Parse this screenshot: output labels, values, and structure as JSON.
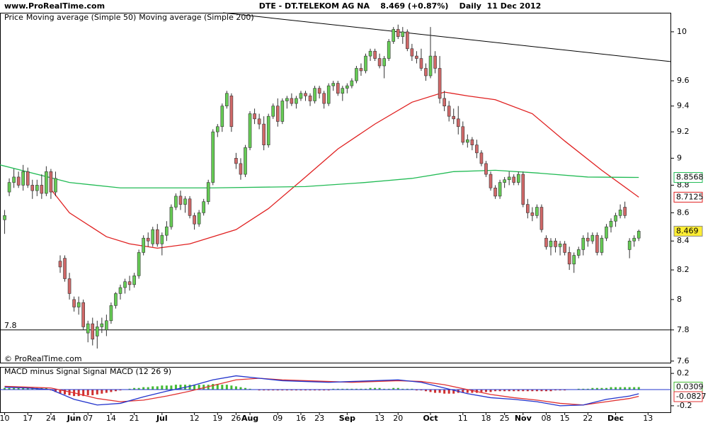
{
  "header": {
    "site": "www.ProRealTime.com",
    "title": "DTE - DT.TELEKOM AG NA    8.469 (+0.87%)    Daily  11 Dec 2012"
  },
  "chart_data": [
    {
      "type": "candlestick",
      "legend_label": "Price",
      "watermark": "© ProRealTime.com",
      "up_color": "#66cc55",
      "down_color": "#d06868",
      "log_scale": true,
      "grid": false,
      "xlim": [
        -1,
        144
      ],
      "ylim": [
        7.59,
        10.16
      ],
      "yticks": [
        7.6,
        7.8,
        8,
        8.2,
        8.4,
        8.6,
        8.8,
        9,
        9.2,
        9.4,
        9.6,
        10
      ],
      "reference_line": 7.8,
      "open": [
        8.55,
        8.75,
        8.82,
        8.86,
        8.8,
        8.9,
        8.8,
        8.76,
        8.8,
        8.74,
        8.9,
        8.75,
        8.26,
        8.28,
        8.14,
        8.0,
        7.95,
        7.98,
        7.78,
        7.84,
        7.76,
        7.82,
        7.8,
        7.86,
        7.96,
        8.04,
        8.08,
        8.12,
        8.1,
        8.16,
        8.32,
        8.42,
        8.38,
        8.48,
        8.38,
        8.44,
        8.5,
        8.64,
        8.72,
        8.66,
        8.7,
        8.58,
        8.52,
        8.6,
        8.68,
        8.82,
        9.2,
        9.24,
        9.4,
        9.48,
        9.0,
        8.96,
        8.88,
        9.08,
        9.34,
        9.3,
        9.26,
        9.1,
        9.32,
        9.4,
        9.28,
        9.44,
        9.46,
        9.42,
        9.46,
        9.5,
        9.48,
        9.44,
        9.54,
        9.5,
        9.42,
        9.56,
        9.58,
        9.5,
        9.54,
        9.56,
        9.6,
        9.7,
        9.68,
        9.8,
        9.84,
        9.78,
        9.72,
        9.78,
        9.92,
        10.02,
        9.96,
        10.0,
        9.86,
        9.8,
        9.78,
        9.7,
        9.64,
        9.8,
        9.7,
        9.46,
        9.4,
        9.32,
        9.3,
        9.24,
        9.12,
        9.14,
        9.1,
        9.04,
        8.96,
        8.88,
        8.78,
        8.72,
        8.82,
        8.84,
        8.86,
        8.82,
        8.88,
        8.66,
        8.6,
        8.58,
        8.64,
        8.42,
        8.36,
        8.4,
        8.36,
        8.38,
        8.32,
        8.24,
        8.3,
        8.34,
        8.42,
        8.4,
        8.44,
        8.32,
        8.42,
        8.5,
        8.54,
        8.58,
        8.64,
        8.34,
        8.4,
        8.42
      ],
      "high": [
        8.62,
        8.85,
        8.92,
        8.9,
        8.95,
        8.93,
        8.84,
        8.84,
        8.88,
        8.94,
        8.92,
        8.9,
        8.3,
        8.3,
        8.18,
        8.02,
        8.02,
        8.0,
        7.86,
        7.88,
        7.86,
        7.88,
        7.9,
        7.98,
        8.05,
        8.1,
        8.14,
        8.16,
        8.18,
        8.34,
        8.44,
        8.46,
        8.5,
        8.52,
        8.46,
        8.54,
        8.66,
        8.74,
        8.76,
        8.72,
        8.72,
        8.6,
        8.62,
        8.7,
        8.84,
        9.22,
        9.26,
        9.42,
        9.52,
        9.5,
        9.04,
        9.0,
        9.1,
        9.36,
        9.38,
        9.34,
        9.32,
        9.34,
        9.42,
        9.46,
        9.46,
        9.48,
        9.5,
        9.48,
        9.52,
        9.52,
        9.5,
        9.56,
        9.56,
        9.52,
        9.58,
        9.6,
        9.6,
        9.56,
        9.58,
        9.62,
        9.72,
        9.74,
        9.82,
        9.86,
        9.86,
        9.82,
        9.8,
        9.94,
        10.04,
        10.06,
        10.04,
        10.02,
        9.9,
        9.84,
        9.86,
        9.74,
        10.04,
        9.84,
        9.8,
        9.52,
        9.44,
        9.38,
        9.4,
        9.28,
        9.18,
        9.16,
        9.14,
        9.06,
        8.98,
        8.9,
        8.8,
        8.84,
        8.86,
        8.9,
        8.88,
        8.9,
        8.9,
        8.7,
        8.64,
        8.66,
        8.66,
        8.44,
        8.42,
        8.42,
        8.4,
        8.4,
        8.36,
        8.32,
        8.36,
        8.44,
        8.46,
        8.46,
        8.46,
        8.44,
        8.52,
        8.56,
        8.6,
        8.66,
        8.68,
        8.42,
        8.44,
        8.48
      ],
      "low": [
        8.45,
        8.72,
        8.78,
        8.78,
        8.76,
        8.78,
        8.7,
        8.72,
        8.7,
        8.72,
        8.7,
        8.72,
        8.18,
        8.12,
        8.0,
        7.92,
        7.9,
        7.8,
        7.72,
        7.7,
        7.68,
        7.78,
        7.76,
        7.84,
        7.94,
        8.0,
        8.04,
        8.06,
        8.08,
        8.14,
        8.3,
        8.36,
        8.36,
        8.36,
        8.3,
        8.4,
        8.48,
        8.62,
        8.62,
        8.6,
        8.56,
        8.48,
        8.5,
        8.58,
        8.66,
        8.8,
        9.16,
        9.2,
        9.38,
        9.2,
        8.92,
        8.84,
        8.86,
        9.06,
        9.26,
        9.22,
        9.06,
        9.08,
        9.3,
        9.24,
        9.26,
        9.38,
        9.4,
        9.38,
        9.44,
        9.44,
        9.4,
        9.42,
        9.46,
        9.38,
        9.4,
        9.52,
        9.48,
        9.44,
        9.5,
        9.54,
        9.58,
        9.64,
        9.66,
        9.76,
        9.76,
        9.7,
        9.62,
        9.76,
        9.9,
        9.94,
        9.9,
        9.84,
        9.76,
        9.74,
        9.68,
        9.6,
        9.62,
        9.66,
        9.42,
        9.36,
        9.28,
        9.26,
        9.18,
        9.1,
        9.08,
        9.06,
        9.0,
        8.94,
        8.86,
        8.76,
        8.7,
        8.7,
        8.78,
        8.8,
        8.8,
        8.8,
        8.64,
        8.56,
        8.54,
        8.56,
        8.46,
        8.34,
        8.3,
        8.32,
        8.3,
        8.3,
        8.2,
        8.18,
        8.28,
        8.3,
        8.36,
        8.38,
        8.3,
        8.3,
        8.4,
        8.46,
        8.5,
        8.56,
        8.56,
        8.28,
        8.36,
        8.4
      ],
      "close": [
        8.58,
        8.82,
        8.86,
        8.8,
        8.9,
        8.8,
        8.76,
        8.8,
        8.74,
        8.9,
        8.75,
        8.85,
        8.22,
        8.14,
        8.04,
        7.95,
        7.98,
        7.82,
        7.84,
        7.74,
        7.82,
        7.84,
        7.86,
        7.96,
        8.04,
        8.08,
        8.12,
        8.1,
        8.16,
        8.32,
        8.42,
        8.4,
        8.48,
        8.38,
        8.44,
        8.5,
        8.64,
        8.72,
        8.66,
        8.7,
        8.58,
        8.52,
        8.6,
        8.68,
        8.82,
        9.2,
        9.24,
        9.4,
        9.5,
        9.24,
        8.96,
        8.88,
        9.08,
        9.34,
        9.3,
        9.26,
        9.1,
        9.32,
        9.4,
        9.28,
        9.44,
        9.46,
        9.42,
        9.46,
        9.5,
        9.48,
        9.44,
        9.54,
        9.5,
        9.42,
        9.56,
        9.58,
        9.5,
        9.54,
        9.56,
        9.6,
        9.7,
        9.68,
        9.8,
        9.84,
        9.78,
        9.72,
        9.78,
        9.92,
        10.02,
        9.96,
        10.0,
        9.86,
        9.8,
        9.78,
        9.7,
        9.64,
        9.8,
        9.7,
        9.46,
        9.4,
        9.32,
        9.3,
        9.24,
        9.12,
        9.14,
        9.1,
        9.04,
        8.96,
        8.88,
        8.78,
        8.72,
        8.82,
        8.84,
        8.86,
        8.82,
        8.88,
        8.66,
        8.6,
        8.58,
        8.64,
        8.48,
        8.36,
        8.4,
        8.36,
        8.38,
        8.32,
        8.24,
        8.3,
        8.34,
        8.42,
        8.4,
        8.44,
        8.32,
        8.42,
        8.5,
        8.54,
        8.58,
        8.62,
        8.58,
        8.4,
        8.42,
        8.469
      ],
      "last_box_color": "#ffee33",
      "series": [
        {
          "name": "Moving average (Simple 50)",
          "color": "#e02020",
          "x": [
            10,
            14,
            22,
            27,
            33,
            40,
            50,
            57,
            65,
            72,
            80,
            88,
            95,
            100,
            106,
            114,
            121,
            129,
            137
          ],
          "values": [
            8.77,
            8.6,
            8.43,
            8.38,
            8.35,
            8.38,
            8.48,
            8.63,
            8.86,
            9.07,
            9.26,
            9.43,
            9.51,
            9.48,
            9.45,
            9.34,
            9.13,
            8.91,
            8.7125
          ]
        },
        {
          "name": "Moving average (Simple 200)",
          "color": "#22bb55",
          "x": [
            -1,
            14,
            25,
            45,
            65,
            78,
            88,
            97,
            106,
            115,
            126,
            137
          ],
          "values": [
            8.95,
            8.82,
            8.78,
            8.78,
            8.79,
            8.82,
            8.85,
            8.9,
            8.91,
            8.89,
            8.86,
            8.8568
          ]
        }
      ]
    },
    {
      "type": "macd",
      "legend_label": "MACD (12 26 9)",
      "xlim": [
        -1,
        144
      ],
      "ylim": [
        -0.28,
        0.28
      ],
      "yticks": [
        0.2,
        -0.2
      ],
      "xticks": [
        {
          "value": 0,
          "label": "10"
        },
        {
          "value": 5,
          "label": "17"
        },
        {
          "value": 10,
          "label": "24"
        },
        {
          "value": 15,
          "label": "Jun"
        },
        {
          "value": 18,
          "label": "07"
        },
        {
          "value": 23,
          "label": "14"
        },
        {
          "value": 28,
          "label": "21"
        },
        {
          "value": 34,
          "label": "Jul"
        },
        {
          "value": 41,
          "label": "12"
        },
        {
          "value": 46,
          "label": "19"
        },
        {
          "value": 50,
          "label": "26"
        },
        {
          "value": 53,
          "label": "Aug"
        },
        {
          "value": 59,
          "label": "09"
        },
        {
          "value": 64,
          "label": "16"
        },
        {
          "value": 68,
          "label": "23"
        },
        {
          "value": 74,
          "label": "Sep"
        },
        {
          "value": 81,
          "label": "13"
        },
        {
          "value": 85,
          "label": "20"
        },
        {
          "value": 92,
          "label": "Oct"
        },
        {
          "value": 99,
          "label": "11"
        },
        {
          "value": 104,
          "label": "18"
        },
        {
          "value": 108,
          "label": "25"
        },
        {
          "value": 112,
          "label": "Nov"
        },
        {
          "value": 117,
          "label": "08"
        },
        {
          "value": 121,
          "label": "15"
        },
        {
          "value": 126,
          "label": "22"
        },
        {
          "value": 132,
          "label": "Dec"
        },
        {
          "value": 139,
          "label": "13"
        }
      ],
      "histogram_name": "MACD minus Signal",
      "up_color": "#44bb33",
      "down_color": "#d03030",
      "histogram": [
        0.02,
        0.02,
        0.02,
        0.02,
        0.02,
        0.02,
        0.02,
        0.02,
        0.02,
        0.02,
        -0.01,
        -0.03,
        -0.05,
        -0.06,
        -0.07,
        -0.08,
        -0.08,
        -0.08,
        -0.07,
        -0.07,
        -0.06,
        -0.05,
        -0.04,
        -0.03,
        -0.02,
        -0.01,
        0.0,
        0.01,
        0.02,
        0.02,
        0.03,
        0.03,
        0.04,
        0.04,
        0.05,
        0.05,
        0.05,
        0.06,
        0.06,
        0.06,
        0.06,
        0.06,
        0.06,
        0.06,
        0.06,
        0.07,
        0.07,
        0.06,
        0.06,
        0.05,
        0.04,
        0.03,
        0.02,
        0.01,
        0.0,
        -0.01,
        -0.01,
        -0.01,
        -0.01,
        -0.01,
        -0.01,
        -0.01,
        -0.01,
        -0.01,
        -0.01,
        -0.01,
        -0.01,
        -0.01,
        -0.01,
        -0.01,
        -0.01,
        0.01,
        0.01,
        0.01,
        0.01,
        0.01,
        0.01,
        0.01,
        0.01,
        0.02,
        0.02,
        0.02,
        0.01,
        0.01,
        0.02,
        0.02,
        0.01,
        0.01,
        0.01,
        -0.01,
        -0.01,
        -0.02,
        -0.03,
        -0.04,
        -0.04,
        -0.05,
        -0.05,
        -0.05,
        -0.04,
        -0.04,
        -0.04,
        -0.04,
        -0.04,
        -0.03,
        -0.03,
        -0.03,
        -0.02,
        -0.02,
        -0.02,
        -0.02,
        -0.02,
        -0.02,
        -0.02,
        -0.02,
        -0.02,
        -0.02,
        -0.02,
        -0.02,
        -0.02,
        -0.01,
        -0.01,
        -0.01,
        0.0,
        0.0,
        0.01,
        0.01,
        0.01,
        0.02,
        0.02,
        0.02,
        0.02,
        0.03,
        0.03,
        0.03,
        0.03,
        0.03,
        0.03,
        0.0309
      ],
      "series": [
        {
          "name": "Signal",
          "color": "#e03030",
          "x": [
            0,
            5,
            10,
            15,
            20,
            25,
            30,
            35,
            40,
            45,
            50,
            55,
            60,
            65,
            70,
            75,
            80,
            85,
            90,
            95,
            100,
            105,
            110,
            115,
            120,
            125,
            130,
            135,
            137
          ],
          "values": [
            0.04,
            0.03,
            0.02,
            -0.04,
            -0.11,
            -0.15,
            -0.13,
            -0.08,
            -0.02,
            0.05,
            0.12,
            0.14,
            0.12,
            0.11,
            0.1,
            0.09,
            0.1,
            0.11,
            0.1,
            0.06,
            0.0,
            -0.06,
            -0.1,
            -0.13,
            -0.17,
            -0.19,
            -0.15,
            -0.11,
            -0.0827
          ]
        },
        {
          "name": "MACD",
          "color": "#2233cc",
          "x": [
            0,
            5,
            10,
            15,
            20,
            25,
            30,
            35,
            40,
            45,
            50,
            55,
            60,
            65,
            70,
            75,
            80,
            85,
            90,
            95,
            100,
            105,
            110,
            115,
            120,
            125,
            130,
            135,
            137
          ],
          "values": [
            0.03,
            0.02,
            0.0,
            -0.12,
            -0.19,
            -0.17,
            -0.09,
            -0.02,
            0.04,
            0.12,
            0.17,
            0.14,
            0.11,
            0.1,
            0.09,
            0.1,
            0.11,
            0.12,
            0.09,
            0.02,
            -0.05,
            -0.1,
            -0.12,
            -0.15,
            -0.2,
            -0.19,
            -0.12,
            -0.08,
            -0.0518
          ]
        }
      ],
      "boxed_series": [
        0
      ]
    }
  ]
}
